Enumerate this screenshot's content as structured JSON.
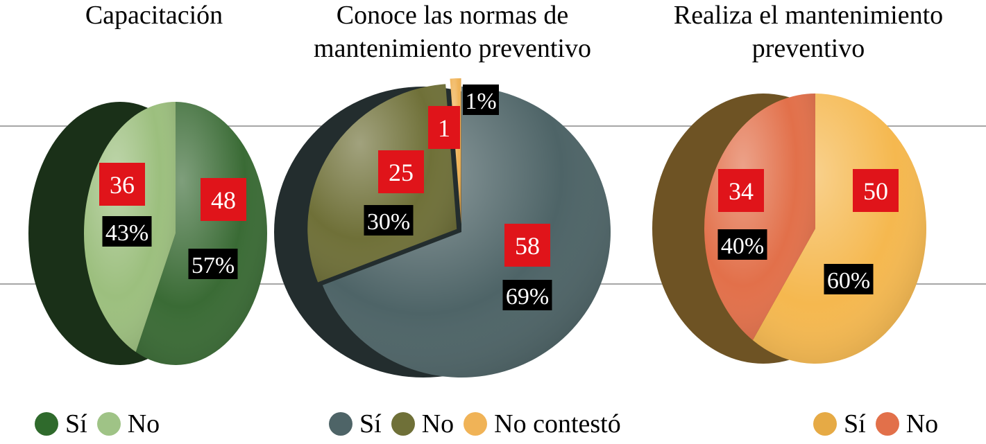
{
  "chart_data": [
    {
      "type": "pie",
      "title": "Capacitación",
      "series": [
        {
          "name": "Sí",
          "value": 48,
          "percent_label": "57%",
          "color": "#3a6b35"
        },
        {
          "name": "No",
          "value": 36,
          "percent_label": "43%",
          "color": "#9cbf7e"
        }
      ],
      "legend": [
        "Sí",
        "No"
      ],
      "legend_placement": "bottom"
    },
    {
      "type": "pie",
      "title": "Conoce las normas de mantenimiento preventivo",
      "series": [
        {
          "name": "Sí",
          "value": 58,
          "percent_label": "69%",
          "color": "#4e6467"
        },
        {
          "name": "No",
          "value": 25,
          "percent_label": "30%",
          "color": "#6f7038"
        },
        {
          "name": "No contestó",
          "value": 1,
          "percent_label": "1%",
          "color": "#f0b357"
        }
      ],
      "legend": [
        "Sí",
        "No",
        "No contestó"
      ],
      "legend_placement": "bottom"
    },
    {
      "type": "pie",
      "title": "Realiza el mantenimiento preventivo",
      "series": [
        {
          "name": "Sí",
          "value": 50,
          "percent_label": "60%",
          "color": "#f5b84f"
        },
        {
          "name": "No",
          "value": 34,
          "percent_label": "40%",
          "color": "#e2704a"
        }
      ],
      "legend": [
        "Sí",
        "No"
      ],
      "legend_placement": "bottom"
    }
  ]
}
